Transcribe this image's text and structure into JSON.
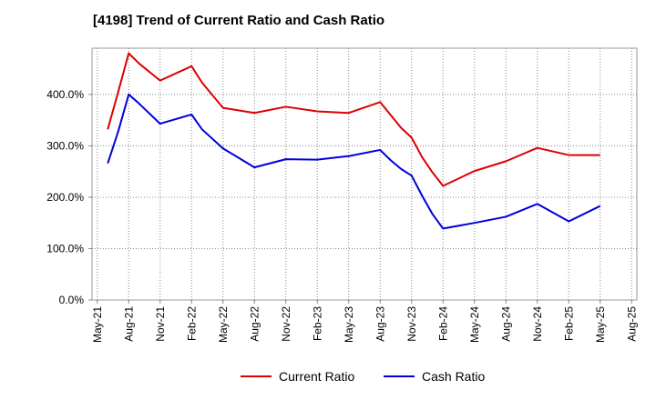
{
  "chart_data": {
    "type": "line",
    "title": "[4198]  Trend of Current Ratio and Cash Ratio",
    "xlabel": "",
    "ylabel": "",
    "ylim": [
      0,
      490
    ],
    "yticks": [
      0,
      100,
      200,
      300,
      400
    ],
    "ytick_labels": [
      "0.0%",
      "100.0%",
      "200.0%",
      "300.0%",
      "400.0%"
    ],
    "xlim": [
      "May-21",
      "Aug-25"
    ],
    "xtick_labels": [
      "May-21",
      "Aug-21",
      "Nov-21",
      "Feb-22",
      "May-22",
      "Aug-22",
      "Nov-22",
      "Feb-23",
      "May-23",
      "Aug-23",
      "Nov-23",
      "Feb-24",
      "May-24",
      "Aug-24",
      "Nov-24",
      "Feb-25",
      "May-25",
      "Aug-25"
    ],
    "grid": true,
    "legend": "bottom",
    "series": [
      {
        "name": "Current Ratio",
        "color": "#dd0000",
        "points": [
          {
            "x": "Jun-21",
            "y": 332
          },
          {
            "x": "Jul-21",
            "y": 405
          },
          {
            "x": "Aug-21",
            "y": 480
          },
          {
            "x": "Sep-21",
            "y": 460
          },
          {
            "x": "Nov-21",
            "y": 427
          },
          {
            "x": "Feb-22",
            "y": 455
          },
          {
            "x": "Mar-22",
            "y": 423
          },
          {
            "x": "May-22",
            "y": 374
          },
          {
            "x": "Aug-22",
            "y": 364
          },
          {
            "x": "Nov-22",
            "y": 376
          },
          {
            "x": "Feb-23",
            "y": 367
          },
          {
            "x": "May-23",
            "y": 364
          },
          {
            "x": "Aug-23",
            "y": 385
          },
          {
            "x": "Sep-23",
            "y": 360
          },
          {
            "x": "Oct-23",
            "y": 335
          },
          {
            "x": "Nov-23",
            "y": 316
          },
          {
            "x": "Dec-23",
            "y": 278
          },
          {
            "x": "Jan-24",
            "y": 248
          },
          {
            "x": "Feb-24",
            "y": 222
          },
          {
            "x": "May-24",
            "y": 251
          },
          {
            "x": "Aug-24",
            "y": 270
          },
          {
            "x": "Nov-24",
            "y": 296
          },
          {
            "x": "Feb-25",
            "y": 282
          },
          {
            "x": "May-25",
            "y": 282
          }
        ]
      },
      {
        "name": "Cash Ratio",
        "color": "#0000dd",
        "points": [
          {
            "x": "Jun-21",
            "y": 266
          },
          {
            "x": "Jul-21",
            "y": 328
          },
          {
            "x": "Aug-21",
            "y": 400
          },
          {
            "x": "Sep-21",
            "y": 382
          },
          {
            "x": "Nov-21",
            "y": 343
          },
          {
            "x": "Feb-22",
            "y": 361
          },
          {
            "x": "Mar-22",
            "y": 332
          },
          {
            "x": "May-22",
            "y": 295
          },
          {
            "x": "Aug-22",
            "y": 258
          },
          {
            "x": "Nov-22",
            "y": 274
          },
          {
            "x": "Feb-23",
            "y": 273
          },
          {
            "x": "May-23",
            "y": 280
          },
          {
            "x": "Aug-23",
            "y": 292
          },
          {
            "x": "Sep-23",
            "y": 272
          },
          {
            "x": "Oct-23",
            "y": 255
          },
          {
            "x": "Nov-23",
            "y": 242
          },
          {
            "x": "Dec-23",
            "y": 203
          },
          {
            "x": "Jan-24",
            "y": 167
          },
          {
            "x": "Feb-24",
            "y": 139
          },
          {
            "x": "May-24",
            "y": 150
          },
          {
            "x": "Aug-24",
            "y": 162
          },
          {
            "x": "Nov-24",
            "y": 187
          },
          {
            "x": "Feb-25",
            "y": 153
          },
          {
            "x": "May-25",
            "y": 183
          }
        ]
      }
    ]
  }
}
